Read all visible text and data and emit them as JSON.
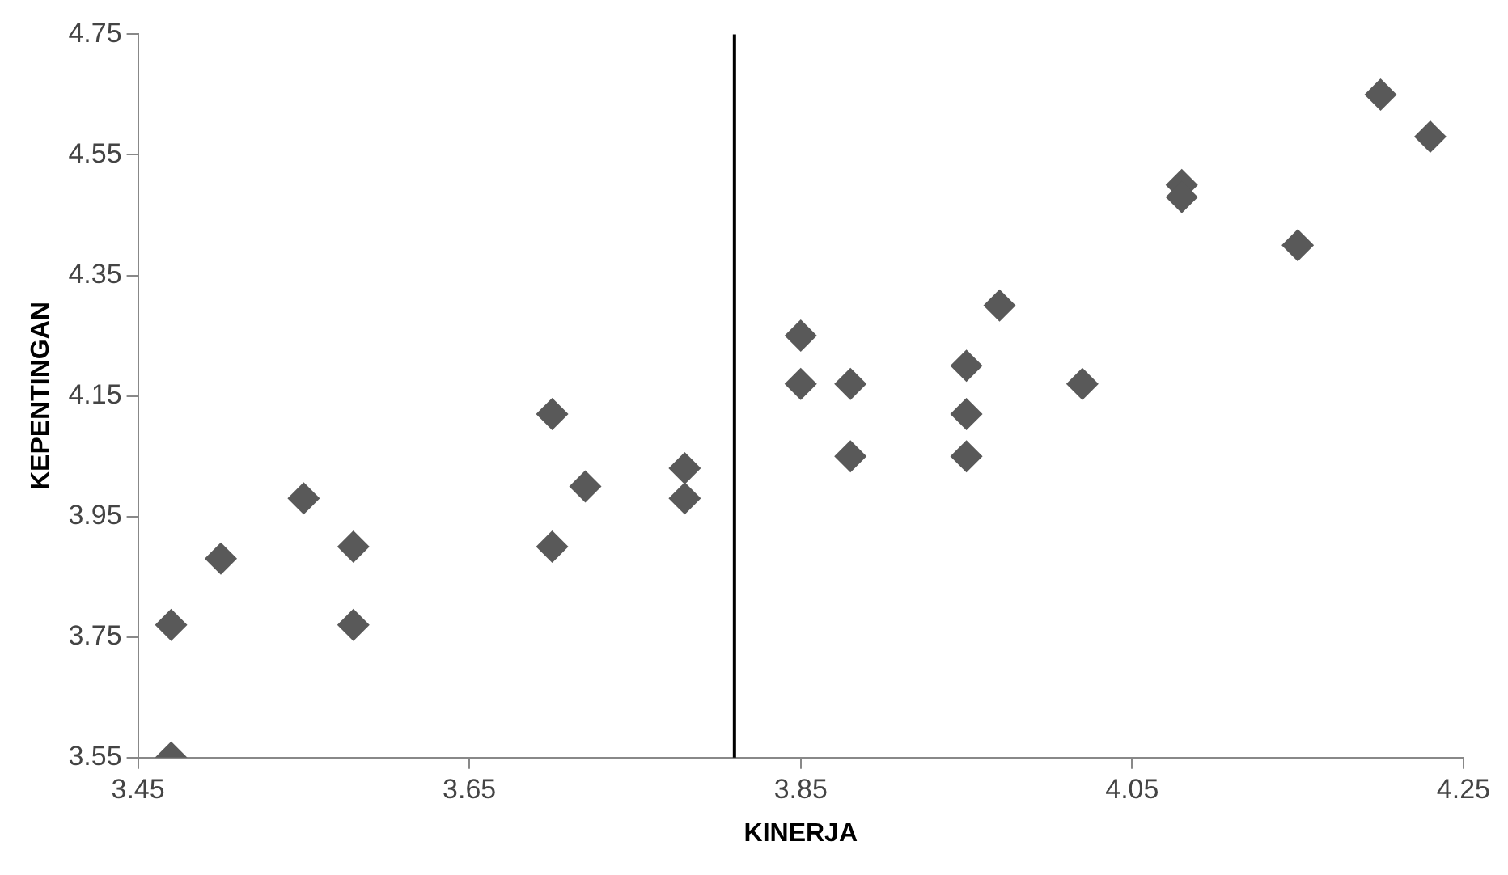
{
  "chart_data": {
    "type": "scatter",
    "xlabel": "KINERJA",
    "ylabel": "KEPENTINGAN",
    "x": [
      3.47,
      3.47,
      3.5,
      3.55,
      3.58,
      3.58,
      3.7,
      3.7,
      3.72,
      3.78,
      3.78,
      3.85,
      3.85,
      3.88,
      3.88,
      3.95,
      3.95,
      3.95,
      3.97,
      4.02,
      4.08,
      4.08,
      4.15,
      4.2,
      4.23
    ],
    "series": [
      {
        "color": "#595959",
        "values": [
          3.77,
          3.55,
          3.88,
          3.98,
          3.9,
          3.77,
          4.12,
          3.9,
          4.0,
          4.03,
          3.98,
          4.25,
          4.17,
          4.17,
          4.05,
          4.2,
          4.12,
          4.05,
          4.3,
          4.17,
          4.5,
          4.48,
          4.4,
          4.65,
          4.58
        ]
      }
    ],
    "xlim": [
      3.45,
      4.25
    ],
    "xticks": [
      3.45,
      3.65,
      3.85,
      4.05,
      4.25
    ],
    "ylim": [
      3.55,
      4.75
    ],
    "yticks": [
      3.55,
      3.75,
      3.95,
      4.15,
      4.35,
      4.55,
      4.75
    ],
    "ref_lines": [
      {
        "axis": "x",
        "value": 3.81,
        "color": "#000000"
      }
    ],
    "grid": false,
    "legend": false,
    "marker": "diamond"
  }
}
